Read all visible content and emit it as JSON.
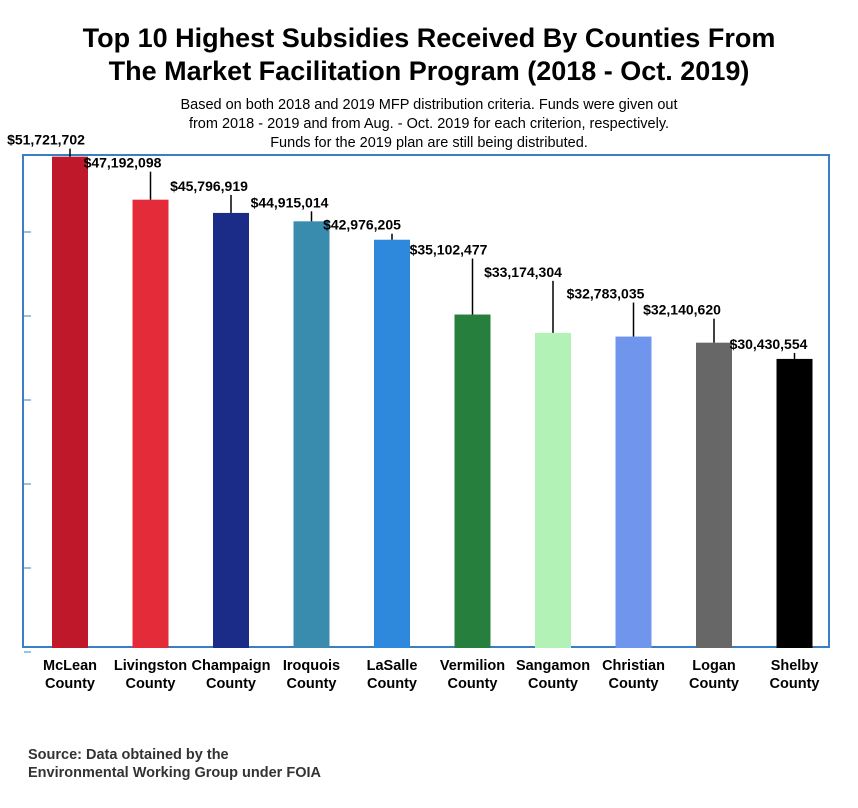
{
  "title_line1": "Top 10 Highest Subsidies Received By Counties From",
  "title_line2": "The Market Facilitation Program (2018 - Oct. 2019)",
  "subtitle_line1": "Based on both 2018 and 2019 MFP distribution criteria. Funds were given out",
  "subtitle_line2": "from 2018 - 2019 and from Aug. - Oct. 2019 for each criterion, respectively.",
  "subtitle_line3": "Funds for the 2019 plan are still being distributed.",
  "source_line1": "Source: Data obtained by the",
  "source_line2": "Environmental Working Group under FOIA",
  "chart_data": {
    "type": "bar",
    "categories": [
      [
        "McLean",
        "County"
      ],
      [
        "Livingston",
        "County"
      ],
      [
        "Champaign",
        "County"
      ],
      [
        "Iroquois",
        "County"
      ],
      [
        "LaSalle",
        "County"
      ],
      [
        "Vermilion",
        "County"
      ],
      [
        "Sangamon",
        "County"
      ],
      [
        "Christian",
        "County"
      ],
      [
        "Logan",
        "County"
      ],
      [
        "Shelby",
        "County"
      ]
    ],
    "values": [
      51721702,
      47192098,
      45796919,
      44915014,
      42976205,
      35102477,
      33174304,
      32783035,
      32140620,
      30430554
    ],
    "data_labels": [
      "$51,721,702",
      "$47,192,098",
      "$45,796,919",
      "$44,915,014",
      "$42,976,205",
      "$35,102,477",
      "$33,174,304",
      "$32,783,035",
      "$32,140,620",
      "$30,430,554"
    ],
    "colors": [
      "#c0182b",
      "#e42b3a",
      "#1b2b88",
      "#3a8caf",
      "#2e88db",
      "#277f3e",
      "#b3f2b6",
      "#7095ed",
      "#676767",
      "#000000"
    ],
    "ylim": [
      0,
      52000000
    ],
    "grid": false
  }
}
